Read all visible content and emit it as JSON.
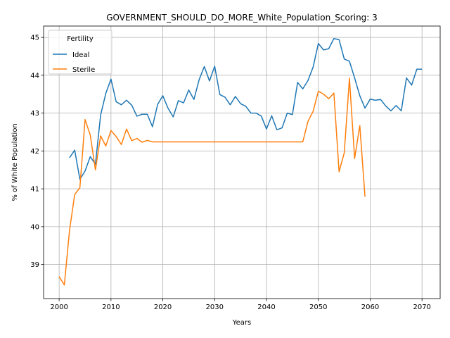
{
  "chart_data": {
    "type": "line",
    "title": "GOVERNMENT_SHOULD_DO_MORE_White_Population_Scoring: 3",
    "xlabel": "Years",
    "ylabel": "% of White Population",
    "xlim": [
      1997,
      2073.5
    ],
    "ylim": [
      38.1,
      45.3
    ],
    "xticks": [
      2000,
      2010,
      2020,
      2030,
      2040,
      2050,
      2060,
      2070
    ],
    "yticks": [
      39,
      40,
      41,
      42,
      43,
      44,
      45
    ],
    "grid": true,
    "legend": {
      "title": "Fertility",
      "placement": "upper-left"
    },
    "series": [
      {
        "name": "Ideal",
        "color": "#1f77b4",
        "x": [
          2002,
          2003,
          2004,
          2005,
          2006,
          2007,
          2008,
          2009,
          2010,
          2011,
          2012,
          2013,
          2014,
          2015,
          2016,
          2017,
          2018,
          2019,
          2020,
          2021,
          2022,
          2023,
          2024,
          2025,
          2026,
          2027,
          2028,
          2029,
          2030,
          2031,
          2032,
          2033,
          2034,
          2035,
          2036,
          2037,
          2038,
          2039,
          2040,
          2041,
          2042,
          2043,
          2044,
          2045,
          2046,
          2047,
          2048,
          2049,
          2050,
          2051,
          2052,
          2053,
          2054,
          2055,
          2056,
          2057,
          2058,
          2059,
          2060,
          2061,
          2062,
          2063,
          2064,
          2065,
          2066,
          2067,
          2068,
          2069,
          2070
        ],
        "values": [
          41.82,
          42.02,
          41.25,
          41.47,
          41.85,
          41.65,
          42.95,
          43.52,
          43.9,
          43.3,
          43.22,
          43.34,
          43.21,
          42.92,
          42.97,
          42.97,
          42.64,
          43.23,
          43.46,
          43.13,
          42.9,
          43.33,
          43.27,
          43.61,
          43.36,
          43.88,
          44.23,
          43.85,
          44.24,
          43.49,
          43.42,
          43.22,
          43.44,
          43.25,
          43.18,
          43.0,
          43.0,
          42.92,
          42.58,
          42.93,
          42.56,
          42.61,
          43.0,
          42.96,
          43.81,
          43.64,
          43.86,
          44.22,
          44.84,
          44.67,
          44.7,
          44.97,
          44.94,
          44.43,
          44.37,
          43.93,
          43.46,
          43.13,
          43.37,
          43.34,
          43.36,
          43.19,
          43.06,
          43.2,
          43.06,
          43.93,
          43.74,
          44.16,
          44.16
        ]
      },
      {
        "name": "Sterile",
        "color": "#ff7f0e",
        "x": [
          2000,
          2001,
          2002,
          2003,
          2004,
          2005,
          2006,
          2007,
          2008,
          2009,
          2010,
          2011,
          2012,
          2013,
          2014,
          2015,
          2016,
          2017,
          2018,
          2019,
          2020,
          2021,
          2022,
          2023,
          2024,
          2025,
          2026,
          2027,
          2028,
          2029,
          2030,
          2031,
          2032,
          2033,
          2034,
          2035,
          2036,
          2037,
          2038,
          2039,
          2040,
          2041,
          2042,
          2043,
          2044,
          2045,
          2046,
          2047,
          2048,
          2049,
          2050,
          2051,
          2052,
          2053,
          2054,
          2055,
          2056,
          2057,
          2058,
          2059
        ],
        "values": [
          38.68,
          38.46,
          39.9,
          40.85,
          41.03,
          42.83,
          42.42,
          41.5,
          42.4,
          42.13,
          42.54,
          42.38,
          42.17,
          42.58,
          42.27,
          42.33,
          42.23,
          42.28,
          42.24,
          42.24,
          42.24,
          42.24,
          42.24,
          42.24,
          42.24,
          42.24,
          42.24,
          42.24,
          42.24,
          42.24,
          42.24,
          42.24,
          42.24,
          42.24,
          42.24,
          42.24,
          42.24,
          42.24,
          42.24,
          42.24,
          42.24,
          42.24,
          42.24,
          42.24,
          42.24,
          42.24,
          42.24,
          42.24,
          42.78,
          43.05,
          43.58,
          43.5,
          43.38,
          43.53,
          41.45,
          41.95,
          43.92,
          41.8,
          42.67,
          40.79
        ]
      }
    ]
  }
}
